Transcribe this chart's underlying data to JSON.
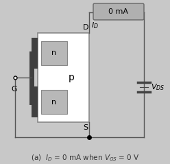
{
  "bg_color": "#c8c8c8",
  "title_text": "(a)  $I_D$ = 0 mA when $V_{GS}$ = 0 V",
  "ammeter_label": "0 mA",
  "ID_label": "$I_D$",
  "VDS_label": "$V_{DS}$",
  "G_label": "G",
  "D_label": "D",
  "S_label": "S",
  "n_label": "n",
  "p_label": "p",
  "body_facecolor": "#ffffff",
  "n_region_color": "#b8b8b8",
  "gate_dark_color": "#404040",
  "wire_color": "#555555",
  "ammeter_fill": "#b0b0b0",
  "ammeter_edge": "#666666",
  "battery_color": "#444444"
}
